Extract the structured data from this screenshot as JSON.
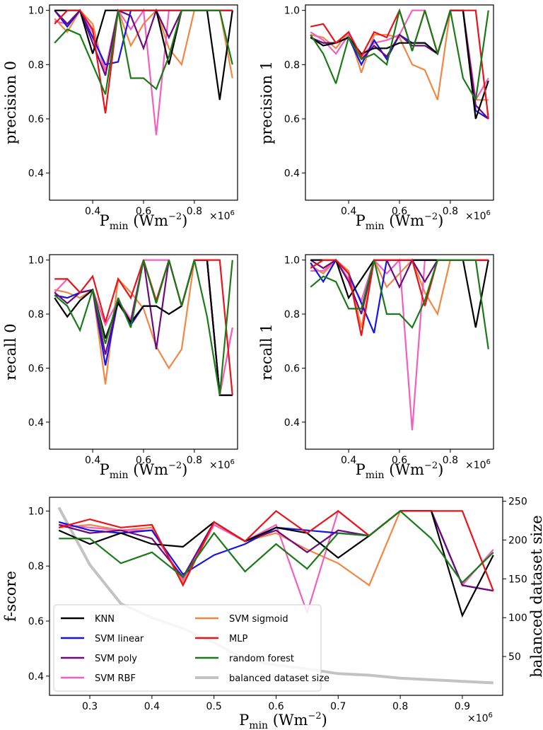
{
  "colors": {
    "KNN": "#000000",
    "SVM linear": "#1414e6",
    "SVM poly": "#6c0a7d",
    "SVM RBF": "#f35fbe",
    "SVM sigmoid": "#f48644",
    "MLP": "#e8141a",
    "random forest": "#1b7a18",
    "balanced dataset size": "#c3c3c3"
  },
  "labels": {
    "pmin_base": "P",
    "pmin_sub": "min",
    "pmin_unit": "(Wm",
    "pmin_exp": "−2",
    "pmin_close": ")",
    "multiplier": "×10",
    "multiplier_exp": "6"
  },
  "chart_data": [
    {
      "id": "p0",
      "type": "line",
      "ylabel": "precision 0",
      "xlim": [
        0.23,
        0.97
      ],
      "ylim": [
        0.3,
        1.02
      ],
      "xticks": [
        "0.4",
        "0.6",
        "0.8"
      ],
      "xtick_values": [
        0.4,
        0.6,
        0.8
      ],
      "yticks": [
        "0.4",
        "0.6",
        "0.8",
        "1.0"
      ],
      "ytick_values": [
        0.4,
        0.6,
        0.8,
        1.0
      ],
      "x": [
        0.25,
        0.3,
        0.35,
        0.4,
        0.45,
        0.5,
        0.55,
        0.6,
        0.65,
        0.7,
        0.75,
        0.8,
        0.85,
        0.9,
        0.95
      ],
      "series": [
        {
          "name": "SVM sigmoid",
          "values": [
            0.97,
            0.92,
            1.0,
            0.95,
            0.76,
            1.0,
            0.87,
            0.95,
            1.0,
            0.86,
            0.8,
            1.0,
            1.0,
            1.0,
            0.75
          ]
        },
        {
          "name": "SVM RBF",
          "values": [
            0.96,
            0.95,
            1.0,
            0.92,
            0.78,
            1.0,
            0.93,
            1.0,
            0.54,
            1.0,
            1.0,
            1.0,
            1.0,
            1.0,
            1.0
          ]
        },
        {
          "name": "SVM linear",
          "values": [
            1.0,
            0.94,
            1.0,
            0.9,
            0.8,
            0.81,
            1.0,
            1.0,
            1.0,
            1.0,
            1.0,
            1.0,
            1.0,
            1.0,
            1.0
          ]
        },
        {
          "name": "SVM poly",
          "values": [
            1.0,
            0.95,
            1.0,
            0.88,
            0.76,
            1.0,
            0.98,
            0.86,
            1.0,
            0.9,
            1.0,
            1.0,
            1.0,
            1.0,
            1.0
          ]
        },
        {
          "name": "KNN",
          "values": [
            1.0,
            1.0,
            1.0,
            0.84,
            1.0,
            1.0,
            1.0,
            1.0,
            1.0,
            0.8,
            1.0,
            1.0,
            1.0,
            0.67,
            1.0
          ]
        },
        {
          "name": "MLP",
          "values": [
            0.95,
            1.0,
            1.0,
            0.93,
            0.62,
            1.0,
            1.0,
            1.0,
            1.0,
            1.0,
            1.0,
            1.0,
            1.0,
            1.0,
            1.0
          ]
        },
        {
          "name": "random forest",
          "values": [
            0.88,
            0.93,
            0.91,
            0.8,
            0.69,
            1.0,
            0.75,
            0.75,
            0.71,
            0.83,
            1.0,
            1.0,
            1.0,
            1.0,
            0.8
          ]
        }
      ]
    },
    {
      "id": "p1",
      "type": "line",
      "ylabel": "precision 1",
      "xlim": [
        0.23,
        0.97
      ],
      "ylim": [
        0.3,
        1.02
      ],
      "xticks": [
        "0.4",
        "0.6",
        "0.8"
      ],
      "xtick_values": [
        0.4,
        0.6,
        0.8
      ],
      "yticks": [
        "0.4",
        "0.6",
        "0.8",
        "1.0"
      ],
      "ytick_values": [
        0.4,
        0.6,
        0.8,
        1.0
      ],
      "x": [
        0.25,
        0.3,
        0.35,
        0.4,
        0.45,
        0.5,
        0.55,
        0.6,
        0.65,
        0.7,
        0.75,
        0.8,
        0.85,
        0.9,
        0.95
      ],
      "series": [
        {
          "name": "SVM sigmoid",
          "values": [
            0.91,
            0.9,
            0.86,
            0.92,
            0.77,
            0.91,
            0.91,
            0.9,
            0.8,
            0.78,
            0.67,
            1.0,
            1.0,
            0.67,
            0.67
          ]
        },
        {
          "name": "SVM RBF",
          "values": [
            0.92,
            0.89,
            0.84,
            0.91,
            0.83,
            0.88,
            0.89,
            0.91,
            1.0,
            1.0,
            0.84,
            1.0,
            1.0,
            0.67,
            0.75
          ]
        },
        {
          "name": "SVM linear",
          "values": [
            0.9,
            0.88,
            0.88,
            0.9,
            0.8,
            0.89,
            0.82,
            0.91,
            0.88,
            0.88,
            0.84,
            1.0,
            1.0,
            0.63,
            0.6
          ]
        },
        {
          "name": "SVM poly",
          "values": [
            0.9,
            0.88,
            0.88,
            0.9,
            0.82,
            0.87,
            0.83,
            0.91,
            0.87,
            0.87,
            0.84,
            1.0,
            1.0,
            0.65,
            0.6
          ]
        },
        {
          "name": "KNN",
          "values": [
            0.9,
            0.87,
            0.88,
            0.9,
            0.84,
            0.86,
            0.86,
            0.88,
            0.88,
            0.88,
            0.84,
            1.0,
            1.0,
            0.6,
            0.74
          ]
        },
        {
          "name": "MLP",
          "values": [
            0.94,
            0.95,
            0.88,
            0.92,
            0.83,
            0.92,
            0.9,
            1.0,
            0.85,
            1.0,
            0.84,
            1.0,
            1.0,
            1.0,
            0.6
          ]
        },
        {
          "name": "random forest",
          "values": [
            0.91,
            0.84,
            0.73,
            0.9,
            0.82,
            0.84,
            0.8,
            1.0,
            0.85,
            1.0,
            0.84,
            1.0,
            0.75,
            0.67,
            1.0
          ]
        }
      ]
    },
    {
      "id": "r0",
      "type": "line",
      "ylabel": "recall 0",
      "xlim": [
        0.23,
        0.97
      ],
      "ylim": [
        0.3,
        1.02
      ],
      "xticks": [
        "0.4",
        "0.6",
        "0.8"
      ],
      "xtick_values": [
        0.4,
        0.6,
        0.8
      ],
      "yticks": [
        "0.4",
        "0.6",
        "0.8",
        "1.0"
      ],
      "ytick_values": [
        0.4,
        0.6,
        0.8,
        1.0
      ],
      "x": [
        0.25,
        0.3,
        0.35,
        0.4,
        0.45,
        0.5,
        0.55,
        0.6,
        0.65,
        0.7,
        0.75,
        0.8,
        0.85,
        0.9,
        0.95
      ],
      "series": [
        {
          "name": "SVM sigmoid",
          "values": [
            0.89,
            0.88,
            0.86,
            0.89,
            0.54,
            0.93,
            0.88,
            0.82,
            0.68,
            0.6,
            0.67,
            1.0,
            1.0,
            0.5,
            0.75
          ]
        },
        {
          "name": "SVM RBF",
          "values": [
            0.88,
            0.93,
            0.88,
            0.89,
            0.76,
            0.85,
            0.78,
            1.0,
            1.0,
            1.0,
            0.83,
            1.0,
            1.0,
            0.5,
            0.75
          ]
        },
        {
          "name": "SVM linear",
          "values": [
            0.87,
            0.86,
            0.88,
            0.89,
            0.61,
            0.85,
            0.76,
            0.83,
            0.83,
            0.8,
            0.83,
            1.0,
            1.0,
            0.5,
            0.5
          ]
        },
        {
          "name": "SVM poly",
          "values": [
            0.88,
            0.84,
            0.88,
            0.89,
            0.65,
            0.85,
            0.77,
            1.0,
            0.67,
            1.0,
            0.83,
            1.0,
            1.0,
            0.5,
            0.5
          ]
        },
        {
          "name": "KNN",
          "values": [
            0.86,
            0.79,
            0.85,
            0.89,
            0.71,
            0.84,
            0.77,
            0.83,
            0.83,
            0.8,
            0.83,
            1.0,
            1.0,
            0.5,
            0.5
          ]
        },
        {
          "name": "MLP",
          "values": [
            0.93,
            0.93,
            0.88,
            0.94,
            0.77,
            0.93,
            0.86,
            1.0,
            0.85,
            1.0,
            0.83,
            1.0,
            1.0,
            1.0,
            0.5
          ]
        },
        {
          "name": "random forest",
          "values": [
            0.87,
            0.83,
            0.74,
            0.89,
            0.69,
            0.86,
            0.75,
            1.0,
            0.84,
            1.0,
            0.83,
            1.0,
            0.79,
            0.5,
            1.0
          ]
        }
      ]
    },
    {
      "id": "r1",
      "type": "line",
      "ylabel": "recall 1",
      "xlim": [
        0.23,
        0.97
      ],
      "ylim": [
        0.3,
        1.02
      ],
      "xticks": [
        "0.4",
        "0.6",
        "0.8"
      ],
      "xtick_values": [
        0.4,
        0.6,
        0.8
      ],
      "yticks": [
        "0.4",
        "0.6",
        "0.8",
        "1.0"
      ],
      "ytick_values": [
        0.4,
        0.6,
        0.8,
        1.0
      ],
      "x": [
        0.25,
        0.3,
        0.35,
        0.4,
        0.45,
        0.5,
        0.55,
        0.6,
        0.65,
        0.7,
        0.75,
        0.8,
        0.85,
        0.9,
        0.95
      ],
      "series": [
        {
          "name": "SVM sigmoid",
          "values": [
            0.98,
            0.95,
            1.0,
            0.96,
            0.75,
            1.0,
            0.9,
            0.95,
            1.0,
            0.88,
            0.8,
            1.0,
            1.0,
            1.0,
            1.0
          ]
        },
        {
          "name": "SVM RBF",
          "values": [
            0.96,
            0.96,
            1.0,
            0.93,
            0.85,
            1.0,
            0.95,
            1.0,
            0.37,
            1.0,
            1.0,
            1.0,
            1.0,
            1.0,
            1.0
          ]
        },
        {
          "name": "SVM linear",
          "values": [
            0.99,
            0.92,
            1.0,
            0.95,
            0.84,
            0.73,
            1.0,
            1.0,
            1.0,
            1.0,
            1.0,
            1.0,
            1.0,
            1.0,
            1.0
          ]
        },
        {
          "name": "SVM poly",
          "values": [
            1.0,
            0.97,
            1.0,
            0.92,
            0.8,
            1.0,
            1.0,
            0.9,
            1.0,
            0.92,
            1.0,
            1.0,
            1.0,
            1.0,
            1.0
          ]
        },
        {
          "name": "KNN",
          "values": [
            1.0,
            1.0,
            1.0,
            0.86,
            0.93,
            1.0,
            1.0,
            1.0,
            1.0,
            1.0,
            1.0,
            1.0,
            1.0,
            0.75,
            1.0
          ]
        },
        {
          "name": "MLP",
          "values": [
            0.97,
            1.0,
            1.0,
            0.95,
            0.72,
            1.0,
            1.0,
            1.0,
            1.0,
            0.83,
            1.0,
            1.0,
            1.0,
            1.0,
            1.0
          ]
        },
        {
          "name": "random forest",
          "values": [
            0.9,
            0.94,
            0.92,
            0.82,
            0.82,
            1.0,
            0.8,
            0.8,
            0.75,
            0.85,
            1.0,
            1.0,
            1.0,
            1.0,
            0.67
          ]
        }
      ]
    },
    {
      "id": "fs",
      "type": "line",
      "ylabel": "f-score",
      "ylabel_right": "balanced dataset size",
      "xlim": [
        0.235,
        0.965
      ],
      "ylim": [
        0.33,
        1.05
      ],
      "ylim_right": [
        0,
        255
      ],
      "xticks": [
        "0.3",
        "0.4",
        "0.5",
        "0.6",
        "0.7",
        "0.8",
        "0.9"
      ],
      "xtick_values": [
        0.3,
        0.4,
        0.5,
        0.6,
        0.7,
        0.8,
        0.9
      ],
      "yticks": [
        "0.4",
        "0.6",
        "0.8",
        "1.0"
      ],
      "ytick_values": [
        0.4,
        0.6,
        0.8,
        1.0
      ],
      "yticks_right": [
        "50",
        "100",
        "150",
        "200",
        "250"
      ],
      "ytick_right_values": [
        50,
        100,
        150,
        200,
        250
      ],
      "x": [
        0.25,
        0.3,
        0.35,
        0.4,
        0.45,
        0.5,
        0.55,
        0.6,
        0.65,
        0.7,
        0.75,
        0.8,
        0.85,
        0.9,
        0.95
      ],
      "series": [
        {
          "name": "balanced dataset size",
          "axis": "right",
          "values": [
            242,
            168,
            118,
            100,
            86,
            68,
            46,
            39,
            34,
            28,
            26,
            22,
            20,
            18,
            16
          ]
        },
        {
          "name": "SVM sigmoid",
          "values": [
            0.94,
            0.95,
            0.93,
            0.94,
            0.74,
            0.95,
            0.89,
            0.92,
            0.86,
            0.81,
            0.73,
            1.0,
            1.0,
            0.73,
            0.71
          ]
        },
        {
          "name": "SVM RBF",
          "values": [
            0.95,
            0.94,
            0.93,
            0.93,
            0.75,
            0.95,
            0.89,
            0.95,
            0.63,
            1.0,
            0.91,
            1.0,
            1.0,
            0.73,
            0.86
          ]
        },
        {
          "name": "SVM linear",
          "values": [
            0.96,
            0.93,
            0.92,
            0.93,
            0.77,
            0.84,
            0.88,
            0.94,
            0.93,
            0.92,
            0.91,
            1.0,
            1.0,
            0.73,
            0.71
          ]
        },
        {
          "name": "SVM poly",
          "values": [
            0.95,
            0.92,
            0.93,
            0.9,
            0.76,
            0.96,
            0.89,
            0.93,
            0.85,
            0.93,
            0.91,
            1.0,
            1.0,
            0.73,
            0.71
          ]
        },
        {
          "name": "KNN",
          "values": [
            0.93,
            0.88,
            0.92,
            0.88,
            0.87,
            0.96,
            0.89,
            0.94,
            0.92,
            0.83,
            0.91,
            1.0,
            1.0,
            0.62,
            0.84
          ]
        },
        {
          "name": "MLP",
          "values": [
            0.94,
            0.97,
            0.94,
            0.95,
            0.73,
            0.96,
            0.89,
            1.0,
            0.92,
            1.0,
            0.91,
            1.0,
            1.0,
            1.0,
            0.71
          ]
        },
        {
          "name": "random forest",
          "values": [
            0.9,
            0.9,
            0.81,
            0.85,
            0.76,
            0.92,
            0.78,
            0.88,
            0.79,
            0.92,
            0.91,
            1.0,
            0.9,
            0.74,
            0.85
          ]
        }
      ],
      "legend": {
        "placement": "lower-left",
        "entries": [
          "KNN",
          "SVM linear",
          "SVM poly",
          "SVM RBF",
          "SVM sigmoid",
          "MLP",
          "random forest",
          "balanced dataset size"
        ]
      }
    }
  ]
}
